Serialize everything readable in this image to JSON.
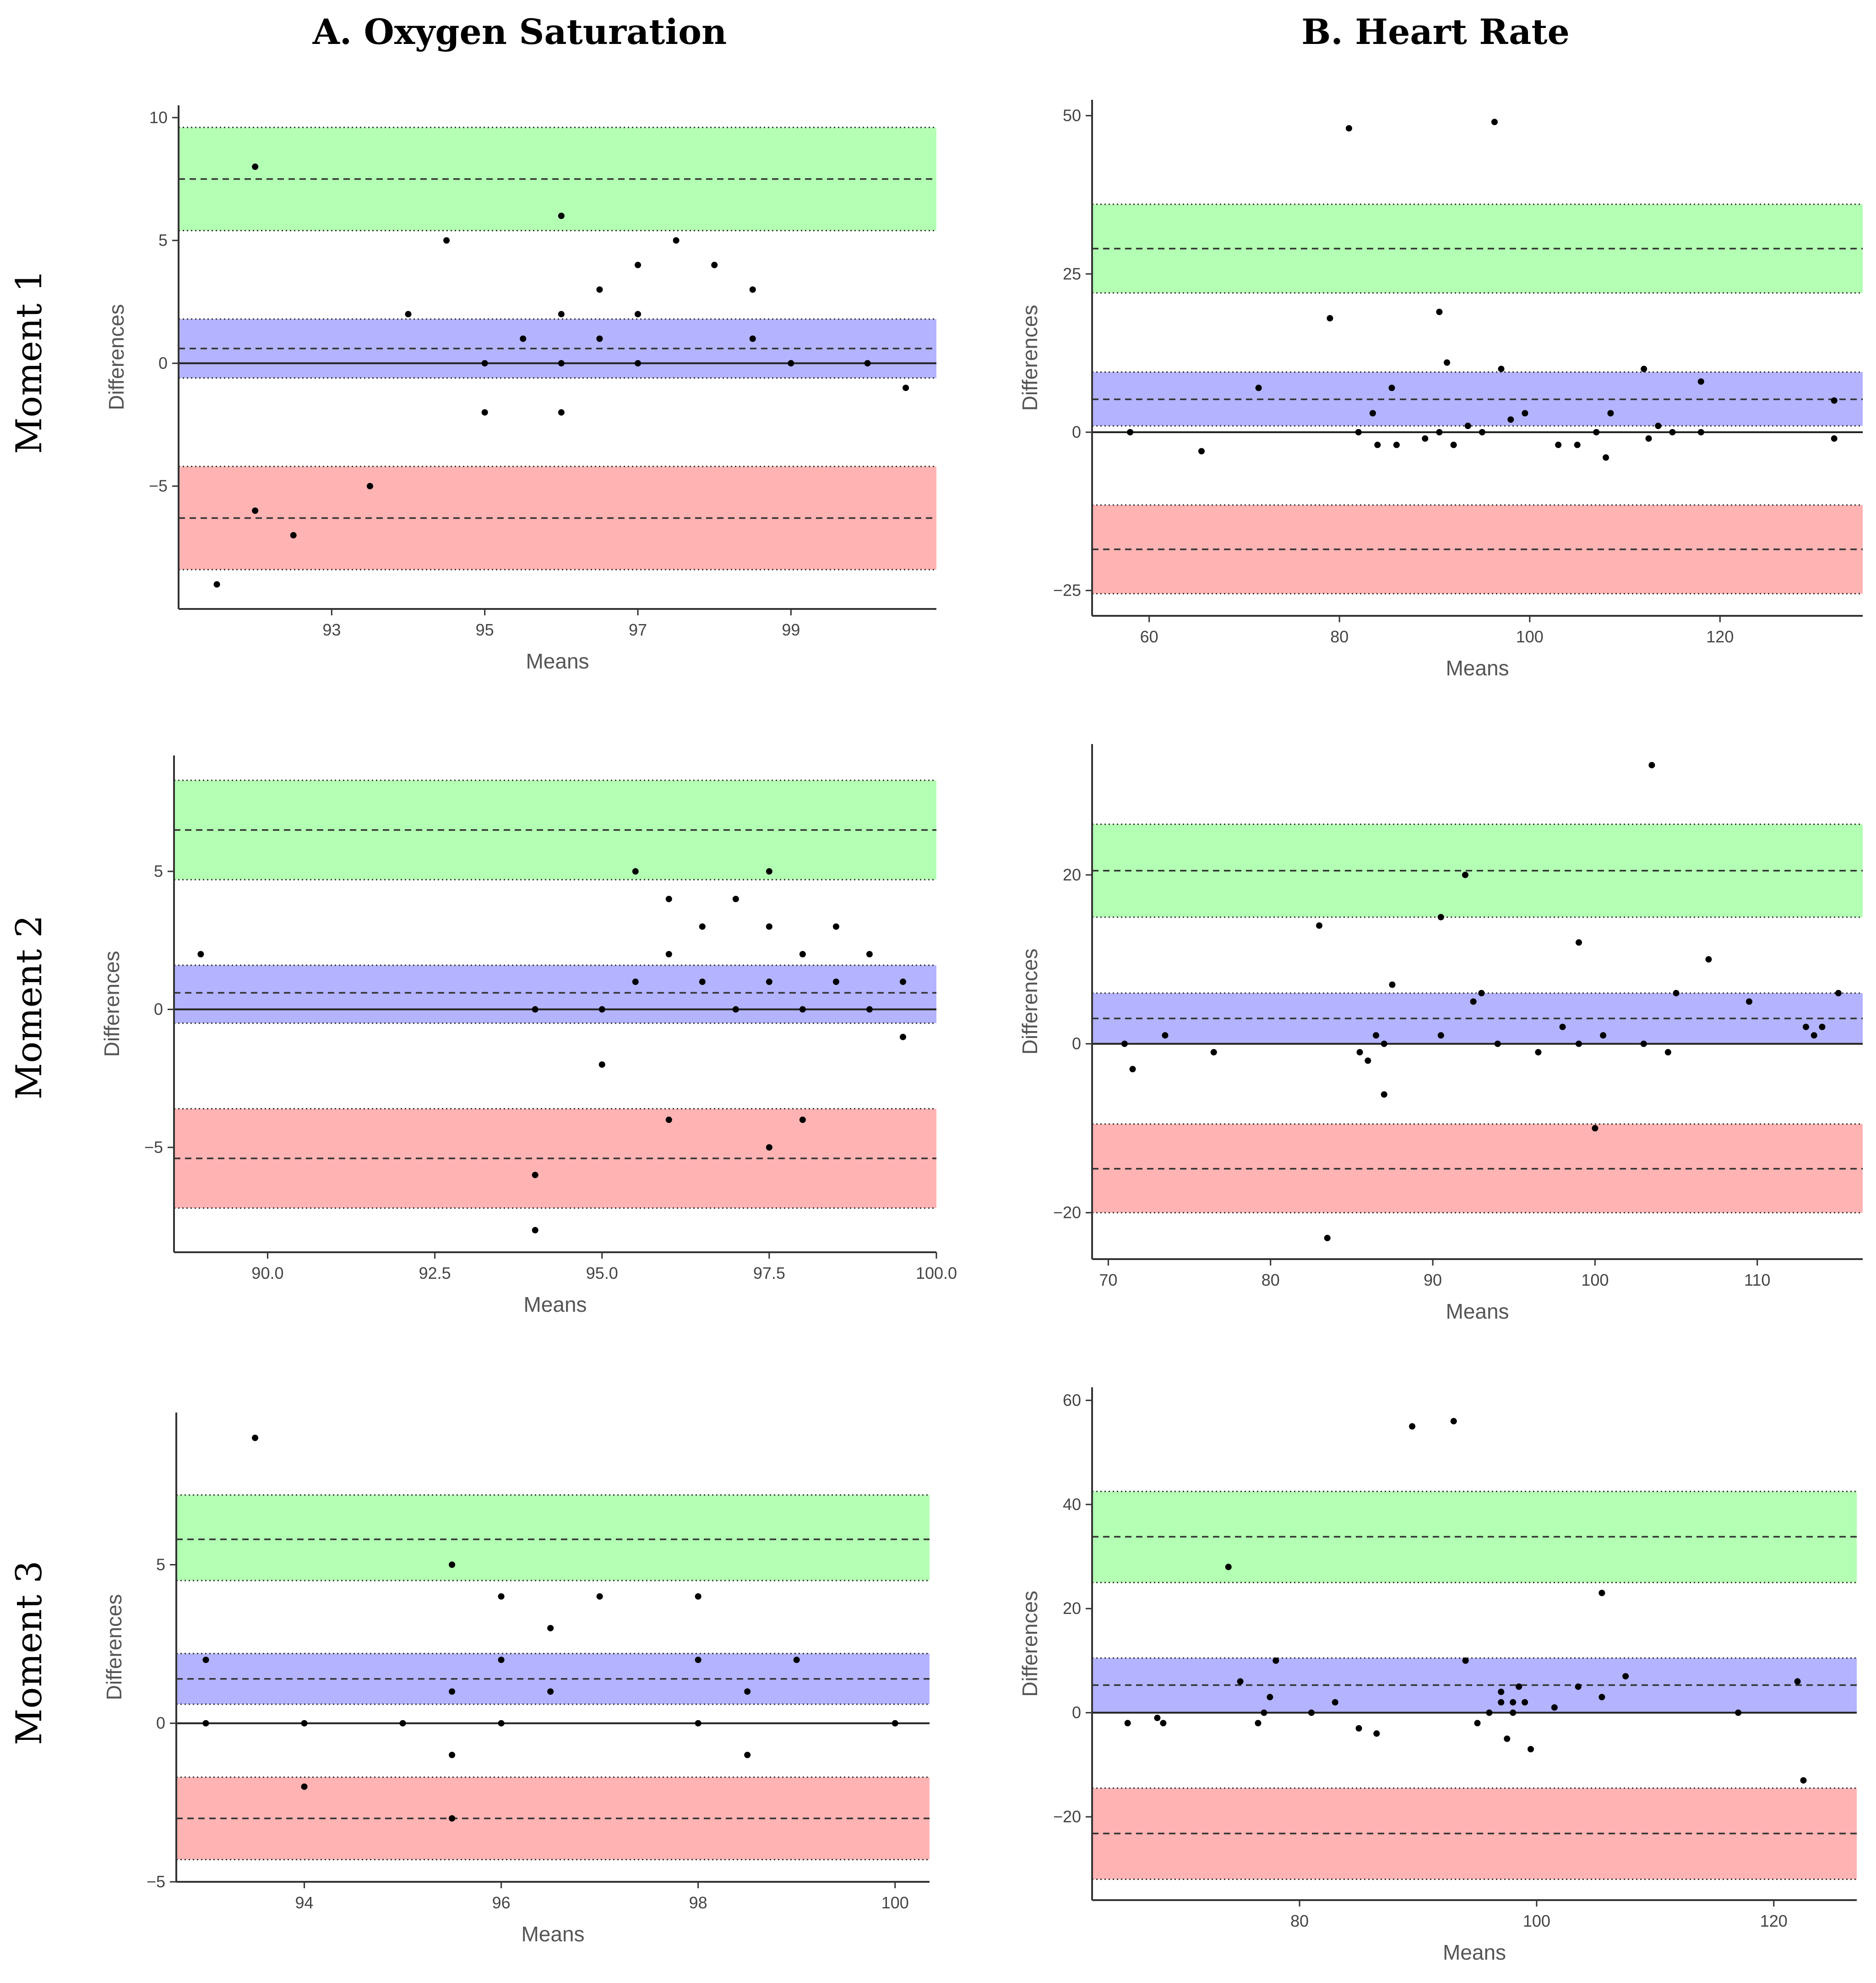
{
  "figure": {
    "column_titles": [
      "A. Oxygen Saturation",
      "B. Heart Rate"
    ],
    "row_titles": [
      "Moment 1",
      "Moment 2",
      "Moment 3"
    ],
    "band_colors": {
      "upper": "#b3ffb3",
      "mean": "#b3b3ff",
      "lower": "#ffb3b3"
    }
  },
  "chart_data": [
    {
      "type": "scatter",
      "xlabel": "Means",
      "ylabel": "Differences",
      "xlim": [
        91,
        100.9
      ],
      "ylim": [
        -10,
        10.5
      ],
      "xticks": [
        93,
        95,
        97,
        99
      ],
      "xtick_labels": [
        "93",
        "95",
        "97",
        "99"
      ],
      "yticks": [
        -5,
        0,
        5,
        10
      ],
      "ytick_labels": [
        "−5",
        "0",
        "5",
        "10"
      ],
      "bands": {
        "upper": [
          5.4,
          9.6,
          7.5
        ],
        "mean": [
          -0.6,
          1.8,
          0.6
        ],
        "lower": [
          -8.4,
          -4.2,
          -6.3
        ]
      },
      "zero_line": true,
      "points": [
        [
          91.5,
          -9
        ],
        [
          92,
          8
        ],
        [
          92,
          -6
        ],
        [
          92.5,
          -7
        ],
        [
          93.5,
          -5
        ],
        [
          94,
          2
        ],
        [
          94.5,
          5
        ],
        [
          95,
          0
        ],
        [
          95,
          -2
        ],
        [
          95.5,
          1
        ],
        [
          96,
          6
        ],
        [
          96,
          2
        ],
        [
          96,
          0
        ],
        [
          96,
          -2
        ],
        [
          96.5,
          3
        ],
        [
          96.5,
          1
        ],
        [
          97,
          4
        ],
        [
          97,
          2
        ],
        [
          97,
          0
        ],
        [
          97.5,
          5
        ],
        [
          98,
          4
        ],
        [
          98.5,
          3
        ],
        [
          98.5,
          1
        ],
        [
          99,
          0
        ],
        [
          100,
          0
        ],
        [
          100.5,
          -1
        ]
      ]
    },
    {
      "type": "scatter",
      "xlabel": "Means",
      "ylabel": "Differences",
      "xlim": [
        54,
        135
      ],
      "ylim": [
        -29,
        52.5
      ],
      "xticks": [
        60,
        80,
        100,
        120
      ],
      "xtick_labels": [
        "60",
        "80",
        "100",
        "120"
      ],
      "yticks": [
        -25,
        0,
        25,
        50
      ],
      "ytick_labels": [
        "−25",
        "0",
        "25",
        "50"
      ],
      "bands": {
        "upper": [
          22,
          36,
          29
        ],
        "mean": [
          1,
          9.5,
          5.2
        ],
        "lower": [
          -25.5,
          -11.5,
          -18.5
        ]
      },
      "zero_line": true,
      "points": [
        [
          58,
          0
        ],
        [
          65.5,
          -3
        ],
        [
          71.5,
          7
        ],
        [
          79,
          18
        ],
        [
          81,
          48
        ],
        [
          82,
          0
        ],
        [
          83.5,
          3
        ],
        [
          84,
          -2
        ],
        [
          85.5,
          7
        ],
        [
          86,
          -2
        ],
        [
          89,
          -1
        ],
        [
          90.5,
          19
        ],
        [
          90.5,
          0
        ],
        [
          91.3,
          11
        ],
        [
          92,
          -2
        ],
        [
          93.5,
          1
        ],
        [
          95,
          0
        ],
        [
          96.3,
          49
        ],
        [
          97,
          10
        ],
        [
          98,
          2
        ],
        [
          99.5,
          3
        ],
        [
          103,
          -2
        ],
        [
          105,
          -2
        ],
        [
          107,
          0
        ],
        [
          108,
          -4
        ],
        [
          108.5,
          3
        ],
        [
          112,
          10
        ],
        [
          112.5,
          -1
        ],
        [
          113.5,
          1
        ],
        [
          115,
          0
        ],
        [
          118,
          0
        ],
        [
          118,
          8
        ],
        [
          132,
          5
        ],
        [
          132,
          -1
        ]
      ]
    },
    {
      "type": "scatter",
      "xlabel": "Means",
      "ylabel": "Differences",
      "xlim": [
        88.6,
        100
      ],
      "ylim": [
        -8.8,
        9.2
      ],
      "xticks": [
        90,
        92.5,
        95,
        97.5,
        100
      ],
      "xtick_labels": [
        "90.0",
        "92.5",
        "95.0",
        "97.5",
        "100.0"
      ],
      "yticks": [
        -5,
        0,
        5
      ],
      "ytick_labels": [
        "−5",
        "0",
        "5"
      ],
      "bands": {
        "upper": [
          4.7,
          8.3,
          6.5
        ],
        "mean": [
          -0.5,
          1.6,
          0.6
        ],
        "lower": [
          -7.2,
          -3.6,
          -5.4
        ]
      },
      "zero_line": true,
      "points": [
        [
          89,
          2
        ],
        [
          94,
          0
        ],
        [
          94,
          -6
        ],
        [
          94,
          -8
        ],
        [
          95,
          0
        ],
        [
          95,
          -2
        ],
        [
          95.5,
          5
        ],
        [
          95.5,
          1
        ],
        [
          96,
          4
        ],
        [
          96,
          2
        ],
        [
          96,
          -4
        ],
        [
          96.5,
          3
        ],
        [
          96.5,
          1
        ],
        [
          97,
          4
        ],
        [
          97,
          0
        ],
        [
          97.5,
          5
        ],
        [
          97.5,
          3
        ],
        [
          97.5,
          1
        ],
        [
          97.5,
          -5
        ],
        [
          98,
          2
        ],
        [
          98,
          0
        ],
        [
          98,
          -4
        ],
        [
          98.5,
          3
        ],
        [
          98.5,
          1
        ],
        [
          99,
          2
        ],
        [
          99,
          0
        ],
        [
          99.5,
          1
        ],
        [
          99.5,
          -1
        ]
      ]
    },
    {
      "type": "scatter",
      "xlabel": "Means",
      "ylabel": "Differences",
      "xlim": [
        69,
        116.5
      ],
      "ylim": [
        -25.5,
        35.5
      ],
      "xticks": [
        70,
        80,
        90,
        100,
        110
      ],
      "xtick_labels": [
        "70",
        "80",
        "90",
        "100",
        "110"
      ],
      "yticks": [
        -20,
        0,
        20
      ],
      "ytick_labels": [
        "−20",
        "0",
        "20"
      ],
      "bands": {
        "upper": [
          15,
          26,
          20.5
        ],
        "mean": [
          0,
          6,
          3
        ],
        "lower": [
          -20,
          -9.5,
          -14.8
        ]
      },
      "zero_line": true,
      "points": [
        [
          71,
          0
        ],
        [
          71.5,
          -3
        ],
        [
          73.5,
          1
        ],
        [
          76.5,
          -1
        ],
        [
          83,
          14
        ],
        [
          83.5,
          -23
        ],
        [
          85.5,
          -1
        ],
        [
          86,
          -2
        ],
        [
          86.5,
          1
        ],
        [
          87,
          0
        ],
        [
          87,
          -6
        ],
        [
          87.5,
          7
        ],
        [
          90.5,
          15
        ],
        [
          90.5,
          1
        ],
        [
          92,
          20
        ],
        [
          92.5,
          5
        ],
        [
          93,
          6
        ],
        [
          94,
          0
        ],
        [
          96.5,
          -1
        ],
        [
          98,
          2
        ],
        [
          99,
          12
        ],
        [
          99,
          0
        ],
        [
          100,
          -10
        ],
        [
          100.5,
          1
        ],
        [
          103,
          0
        ],
        [
          103.5,
          33
        ],
        [
          104.5,
          -1
        ],
        [
          105,
          6
        ],
        [
          107,
          10
        ],
        [
          109.5,
          5
        ],
        [
          113,
          2
        ],
        [
          113.5,
          1
        ],
        [
          114,
          2
        ],
        [
          115,
          6
        ]
      ]
    },
    {
      "type": "scatter",
      "xlabel": "Means",
      "ylabel": "Differences",
      "xlim": [
        92.7,
        100.35
      ],
      "ylim": [
        -5,
        9.8
      ],
      "xticks": [
        94,
        96,
        98,
        100
      ],
      "xtick_labels": [
        "94",
        "96",
        "98",
        "100"
      ],
      "yticks": [
        -5,
        0,
        5
      ],
      "ytick_labels": [
        "−5",
        "0",
        "5"
      ],
      "bands": {
        "upper": [
          4.5,
          7.2,
          5.8
        ],
        "mean": [
          0.6,
          2.2,
          1.4
        ],
        "lower": [
          -4.3,
          -1.7,
          -3
        ]
      },
      "zero_line": true,
      "points": [
        [
          93,
          2
        ],
        [
          93,
          0
        ],
        [
          93.5,
          9
        ],
        [
          94,
          0
        ],
        [
          94,
          -2
        ],
        [
          95,
          0
        ],
        [
          95.5,
          5
        ],
        [
          95.5,
          1
        ],
        [
          95.5,
          -1
        ],
        [
          95.5,
          -3
        ],
        [
          96,
          4
        ],
        [
          96,
          2
        ],
        [
          96,
          0
        ],
        [
          96.5,
          3
        ],
        [
          96.5,
          1
        ],
        [
          97,
          4
        ],
        [
          98,
          4
        ],
        [
          98,
          2
        ],
        [
          98,
          0
        ],
        [
          98.5,
          1
        ],
        [
          98.5,
          -1
        ],
        [
          99,
          2
        ],
        [
          100,
          0
        ]
      ]
    },
    {
      "type": "scatter",
      "xlabel": "Means",
      "ylabel": "Differences",
      "xlim": [
        62.5,
        127
      ],
      "ylim": [
        -36,
        62.5
      ],
      "xticks": [
        80,
        100,
        120
      ],
      "xtick_labels": [
        "80",
        "100",
        "120"
      ],
      "yticks": [
        -20,
        0,
        20,
        40,
        60
      ],
      "ytick_labels": [
        "−20",
        "0",
        "20",
        "40",
        "60"
      ],
      "bands": {
        "upper": [
          25,
          42.5,
          33.8
        ],
        "mean": [
          0,
          10.5,
          5.3
        ],
        "lower": [
          -32,
          -14.5,
          -23.2
        ]
      },
      "zero_line": true,
      "points": [
        [
          65.5,
          -2
        ],
        [
          68,
          -1
        ],
        [
          68.5,
          -2
        ],
        [
          74,
          28
        ],
        [
          75,
          6
        ],
        [
          76.5,
          -2
        ],
        [
          77,
          0
        ],
        [
          77.5,
          3
        ],
        [
          78,
          10
        ],
        [
          81,
          0
        ],
        [
          83,
          2
        ],
        [
          85,
          -3
        ],
        [
          86.5,
          -4
        ],
        [
          89.5,
          55
        ],
        [
          93,
          56
        ],
        [
          94,
          10
        ],
        [
          95,
          -2
        ],
        [
          96,
          0
        ],
        [
          97,
          4
        ],
        [
          97,
          2
        ],
        [
          97.5,
          -5
        ],
        [
          98,
          2
        ],
        [
          98,
          0
        ],
        [
          98.5,
          5
        ],
        [
          99,
          2
        ],
        [
          99.5,
          -7
        ],
        [
          101.5,
          1
        ],
        [
          103.5,
          5
        ],
        [
          105.5,
          23
        ],
        [
          105.5,
          3
        ],
        [
          107.5,
          7
        ],
        [
          117,
          0
        ],
        [
          122,
          6
        ],
        [
          122.5,
          -13
        ]
      ]
    }
  ]
}
